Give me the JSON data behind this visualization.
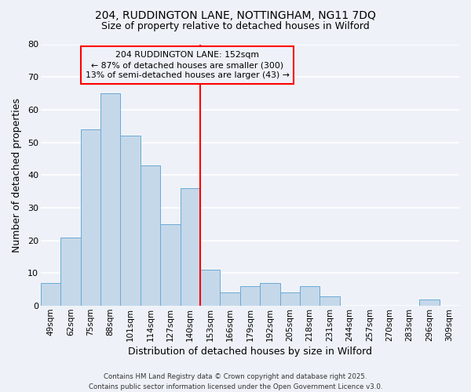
{
  "title_line1": "204, RUDDINGTON LANE, NOTTINGHAM, NG11 7DQ",
  "title_line2": "Size of property relative to detached houses in Wilford",
  "xlabel": "Distribution of detached houses by size in Wilford",
  "ylabel": "Number of detached properties",
  "categories": [
    "49sqm",
    "62sqm",
    "75sqm",
    "88sqm",
    "101sqm",
    "114sqm",
    "127sqm",
    "140sqm",
    "153sqm",
    "166sqm",
    "179sqm",
    "192sqm",
    "205sqm",
    "218sqm",
    "231sqm",
    "244sqm",
    "257sqm",
    "270sqm",
    "283sqm",
    "296sqm",
    "309sqm"
  ],
  "values": [
    7,
    21,
    54,
    65,
    52,
    43,
    25,
    36,
    11,
    4,
    6,
    7,
    4,
    6,
    3,
    0,
    0,
    0,
    0,
    2,
    0
  ],
  "bar_color": "#c5d8ea",
  "bar_edge_color": "#6aaad4",
  "bg_color": "#eef2f8",
  "grid_color": "#ffffff",
  "red_line_index": 8,
  "legend_title": "204 RUDDINGTON LANE: 152sqm",
  "legend_line1": "← 87% of detached houses are smaller (300)",
  "legend_line2": "13% of semi-detached houses are larger (43) →",
  "ylim": [
    0,
    80
  ],
  "yticks": [
    0,
    10,
    20,
    30,
    40,
    50,
    60,
    70,
    80
  ],
  "footer_line1": "Contains HM Land Registry data © Crown copyright and database right 2025.",
  "footer_line2": "Contains public sector information licensed under the Open Government Licence v3.0."
}
